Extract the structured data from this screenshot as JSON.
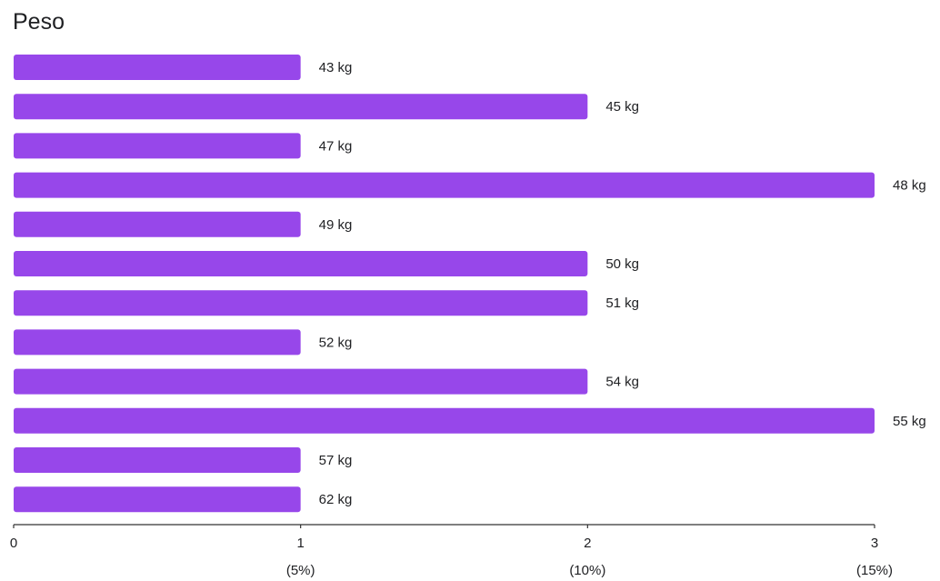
{
  "chart_data": {
    "type": "bar",
    "orientation": "horizontal",
    "title": "Peso",
    "categories": [
      "43 kg",
      "45 kg",
      "47 kg",
      "48 kg",
      "49 kg",
      "50 kg",
      "51 kg",
      "52 kg",
      "54 kg",
      "55 kg",
      "57 kg",
      "62 kg"
    ],
    "values": [
      1,
      2,
      1,
      3,
      1,
      2,
      2,
      1,
      2,
      3,
      1,
      1
    ],
    "xlim": [
      0,
      3
    ],
    "xticks": [
      {
        "value": 0,
        "label": "0",
        "pct": ""
      },
      {
        "value": 1,
        "label": "1",
        "pct": "(5%)"
      },
      {
        "value": 2,
        "label": "2",
        "pct": "(10%)"
      },
      {
        "value": 3,
        "label": "3",
        "pct": "(15%)"
      }
    ],
    "bar_color": "#9747ea",
    "grid": false,
    "legend": "none"
  }
}
